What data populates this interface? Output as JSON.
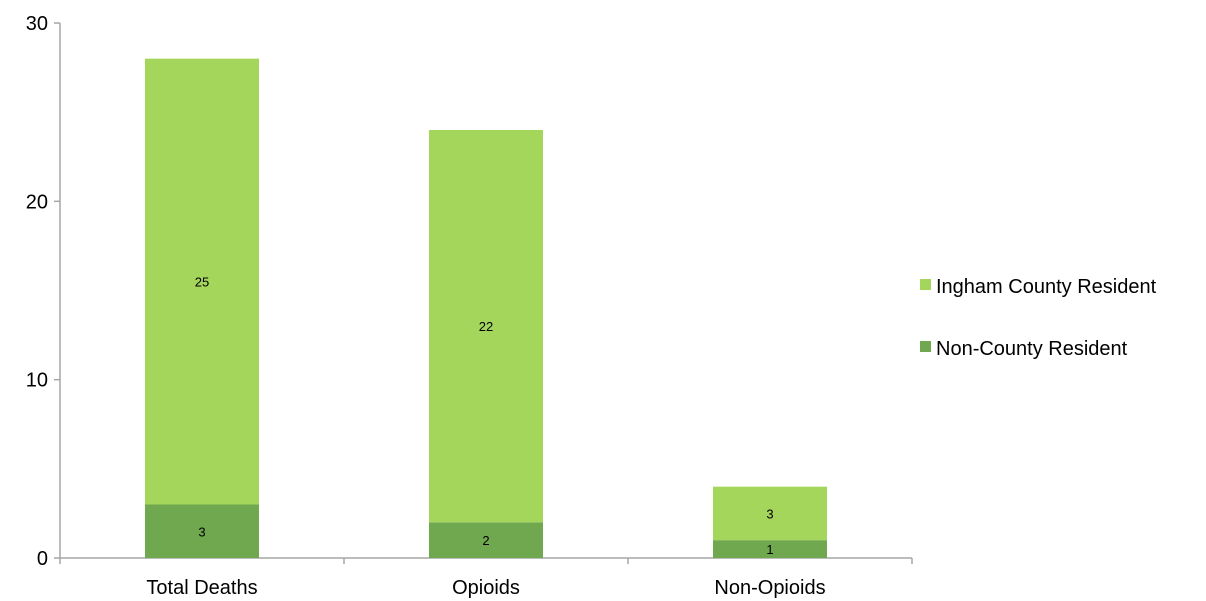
{
  "chart_data": {
    "type": "bar",
    "stacked": true,
    "categories": [
      "Total Deaths",
      "Opioids",
      "Non-Opioids"
    ],
    "series": [
      {
        "name": "Non-County Resident",
        "values": [
          3,
          2,
          1
        ],
        "color": "#70a84f"
      },
      {
        "name": "Ingham County Resident",
        "values": [
          25,
          22,
          3
        ],
        "color": "#a5d65c"
      }
    ],
    "ylim": [
      0,
      30
    ],
    "yticks": [
      0,
      10,
      20,
      30
    ],
    "grid": false,
    "legend_position": "right",
    "data_labels": true
  }
}
